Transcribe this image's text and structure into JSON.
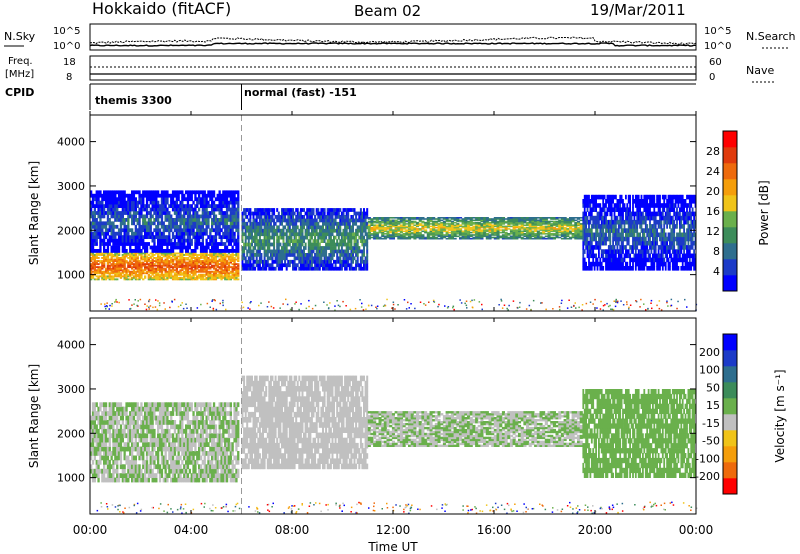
{
  "header": {
    "site": "Hokkaido (fitACF)",
    "beam": "Beam 02",
    "date": "19/Mar/2011"
  },
  "noise_panel": {
    "left_label": "N.Sky",
    "right_label": "N.Search",
    "left_ticks": [
      "10^5",
      "10^0"
    ],
    "right_ticks": [
      "10^5",
      "10^0"
    ]
  },
  "freq_panel": {
    "left_label_1": "Freq.",
    "left_label_2": "[MHz]",
    "right_label": "Nave",
    "left_ticks": [
      "18",
      "8"
    ],
    "right_ticks": [
      "60",
      "0"
    ]
  },
  "cpid_panel": {
    "label": "CPID",
    "modes": [
      {
        "name": "themis 3300",
        "start_hour": 0
      },
      {
        "name": "normal (fast) -151",
        "start_hour": 6
      }
    ]
  },
  "x_axis": {
    "label": "Time UT",
    "ticks": [
      "00:00",
      "04:00",
      "08:00",
      "12:00",
      "16:00",
      "20:00",
      "00:00"
    ],
    "range_hours": [
      0,
      24
    ]
  },
  "chart_data": [
    {
      "type": "heatmap",
      "ylabel": "Slant Range [km]",
      "ylim": [
        180,
        4600
      ],
      "yticks": [
        1000,
        2000,
        3000,
        4000
      ],
      "colorbar": {
        "label": "Power [dB]",
        "ticks": [
          "28",
          "24",
          "20",
          "16",
          "12",
          "8",
          "4"
        ],
        "range": [
          0,
          32
        ],
        "colors": [
          "#0000ff",
          "#1c3bc8",
          "#2e6e8e",
          "#3c8c5a",
          "#6ab04c",
          "#f0c419",
          "#f59e0b",
          "#ee6a0c",
          "#e03a0c",
          "#ff0000"
        ]
      },
      "bands": [
        {
          "t0": 0.0,
          "t1": 5.9,
          "r0": 880,
          "r1": 1500,
          "value": 26
        },
        {
          "t0": 0.0,
          "t1": 5.9,
          "r0": 1500,
          "r1": 2900,
          "value": 8
        },
        {
          "t0": 6.0,
          "t1": 11.0,
          "r0": 1100,
          "r1": 2500,
          "value": 12
        },
        {
          "t0": 11.0,
          "t1": 19.5,
          "r0": 1800,
          "r1": 2300,
          "value": 18
        },
        {
          "t0": 19.5,
          "t1": 24.0,
          "r0": 1100,
          "r1": 2800,
          "value": 8
        }
      ]
    },
    {
      "type": "heatmap",
      "ylabel": "Slant Range [km]",
      "ylim": [
        180,
        4600
      ],
      "yticks": [
        1000,
        2000,
        3000,
        4000
      ],
      "colorbar": {
        "label": "Velocity [m s⁻¹]",
        "ticks": [
          "200",
          "100",
          "50",
          "15",
          "-15",
          "-50",
          "-100",
          "-200"
        ],
        "range": [
          -250,
          250
        ],
        "colors": [
          "#ff0000",
          "#ee6a0c",
          "#f59e0b",
          "#f0c419",
          "#c0c0c0",
          "#6ab04c",
          "#3c8c5a",
          "#2e6e8e",
          "#1c3bc8",
          "#0000ff"
        ]
      },
      "bands": [
        {
          "t0": 0.0,
          "t1": 5.9,
          "r0": 900,
          "r1": 2700,
          "value": 0
        },
        {
          "t0": 6.0,
          "t1": 11.0,
          "r0": 1200,
          "r1": 3300,
          "value": -30
        },
        {
          "t0": 11.0,
          "t1": 19.5,
          "r0": 1700,
          "r1": 2500,
          "value": 0
        },
        {
          "t0": 19.5,
          "t1": 24.0,
          "r0": 1000,
          "r1": 3000,
          "value": 30
        }
      ]
    }
  ]
}
